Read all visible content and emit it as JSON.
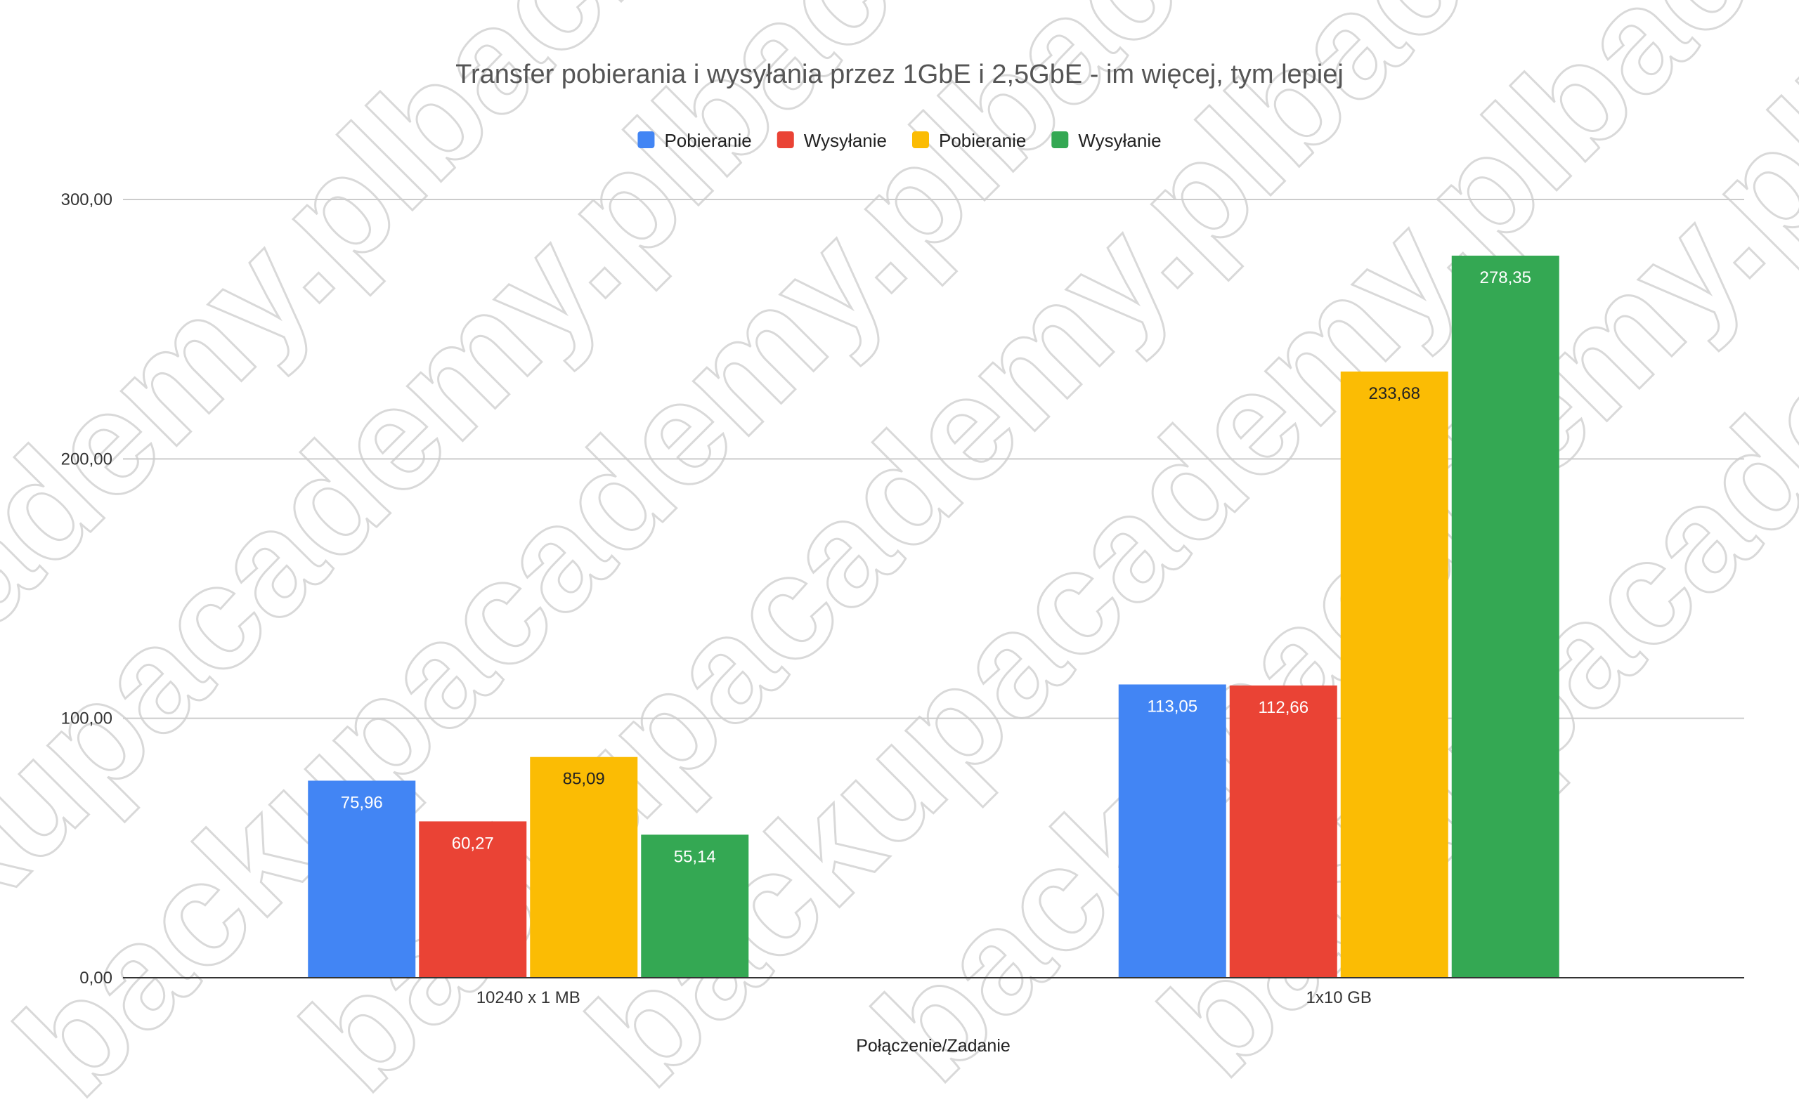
{
  "chart_data": {
    "type": "bar",
    "title": "Transfer pobierania i wysyłania przez 1GbE i 2,5GbE - im więcej, tym lepiej",
    "xlabel": "Połączenie/Zadanie",
    "ylabel": "",
    "categories": [
      "10240 x 1 MB",
      "1x10 GB"
    ],
    "series": [
      {
        "name": "Pobieranie",
        "color": "#4285f4",
        "values": [
          75.96,
          113.05
        ],
        "labels": [
          "75,96",
          "113,05"
        ],
        "label_color": "#ffffff"
      },
      {
        "name": "Wysyłanie",
        "color": "#ea4335",
        "values": [
          60.27,
          112.66
        ],
        "labels": [
          "60,27",
          "112,66"
        ],
        "label_color": "#ffffff"
      },
      {
        "name": "Pobieranie",
        "color": "#fbbc04",
        "values": [
          85.09,
          233.68
        ],
        "labels": [
          "85,09",
          "233,68"
        ],
        "label_color": "#222222"
      },
      {
        "name": "Wysyłanie",
        "color": "#34a853",
        "values": [
          55.14,
          278.35
        ],
        "labels": [
          "55,14",
          "278,35"
        ],
        "label_color": "#ffffff"
      }
    ],
    "ylim": [
      0,
      300
    ],
    "yticks": [
      {
        "value": 0,
        "label": "0,00"
      },
      {
        "value": 100,
        "label": "100,00"
      },
      {
        "value": 200,
        "label": "200,00"
      },
      {
        "value": 300,
        "label": "300,00"
      }
    ],
    "grid": true,
    "legend_position": "top"
  },
  "watermark": {
    "text": "backupacademy.pl"
  }
}
